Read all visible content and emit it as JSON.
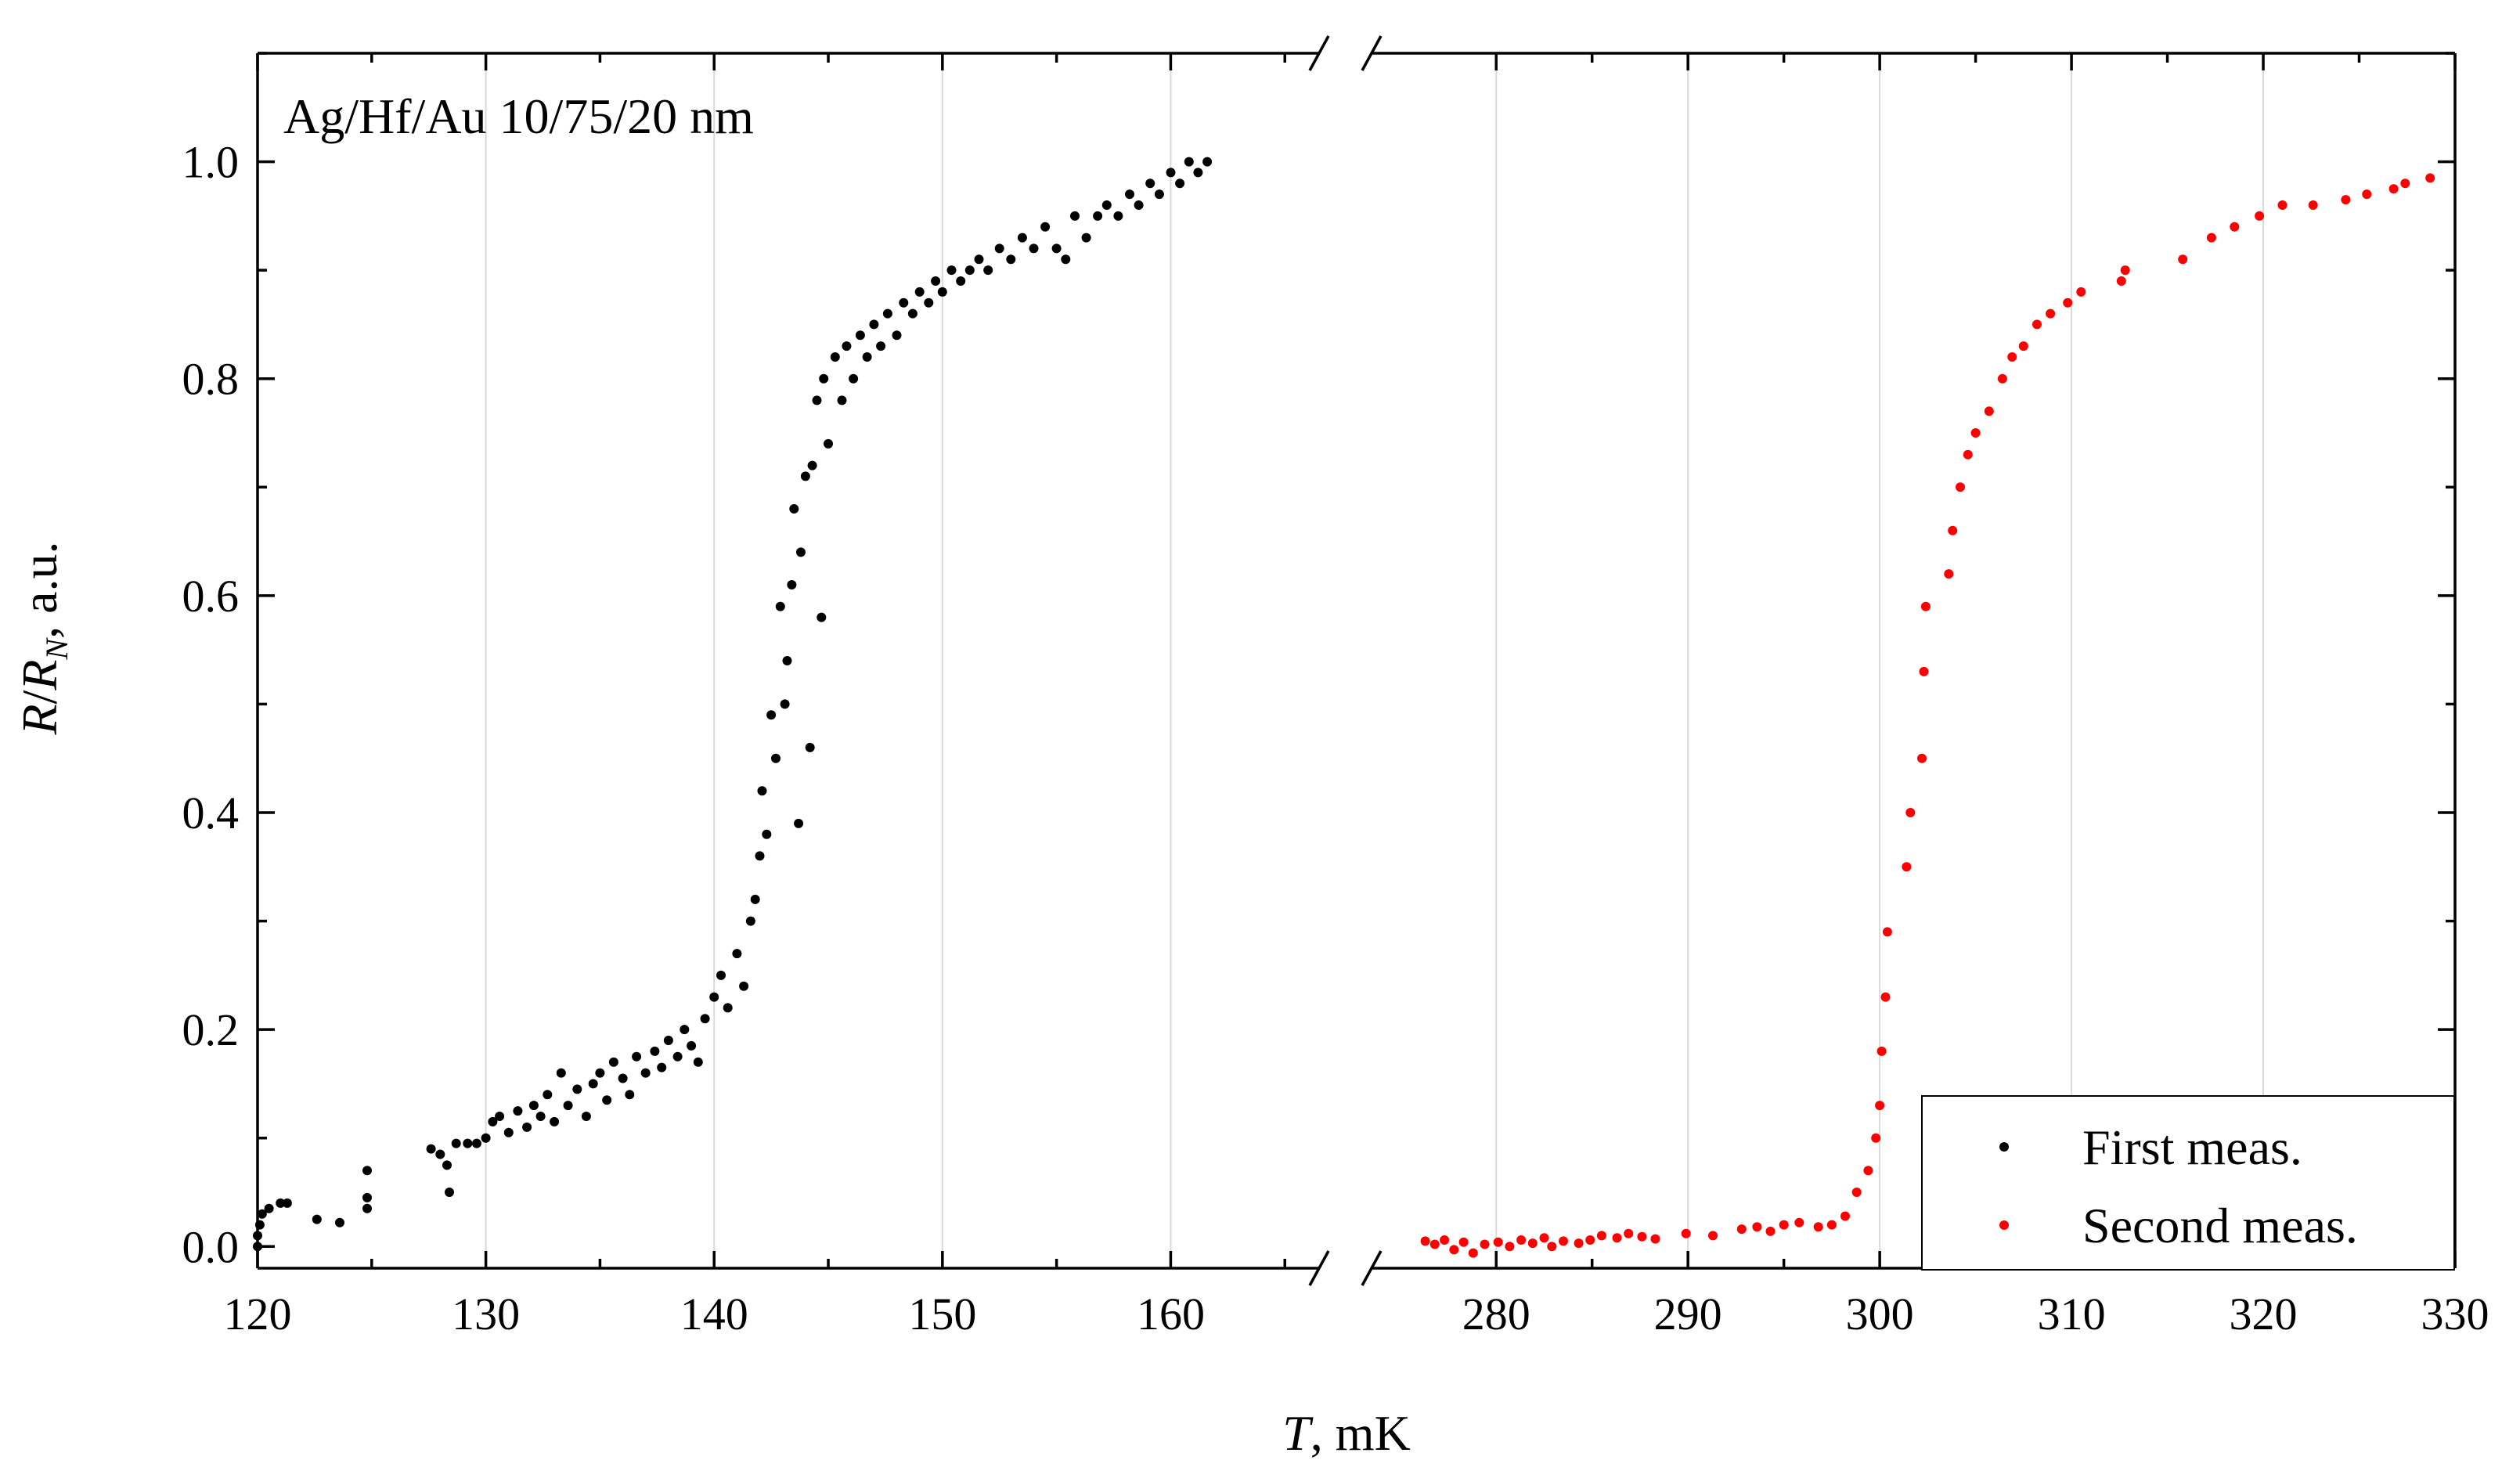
{
  "chart_data": {
    "type": "scatter",
    "title": "",
    "annotation": "Ag/Hf/Au 10/75/20 nm",
    "ylabel_parts": {
      "italic_1": "R",
      "slash": "/",
      "italic_2": "R",
      "subscript": "N",
      "suffix": ", a.u."
    },
    "xlabel_parts": {
      "italic": "T",
      "suffix": ", mK"
    },
    "ylim": [
      -0.02,
      1.1
    ],
    "yticks": [
      0.0,
      0.2,
      0.4,
      0.6,
      0.8,
      1.0
    ],
    "ytick_labels": [
      "0.0",
      "0.2",
      "0.4",
      "0.6",
      "0.8",
      "1.0"
    ],
    "x_break": true,
    "x_segments": [
      {
        "xlim": [
          120,
          166.5
        ],
        "ticks": [
          120,
          130,
          140,
          150,
          160
        ],
        "tick_labels": [
          "120",
          "130",
          "140",
          "150",
          "160"
        ]
      },
      {
        "xlim": [
          273.5,
          330
        ],
        "ticks": [
          280,
          290,
          300,
          310,
          320,
          330
        ],
        "tick_labels": [
          "280",
          "290",
          "300",
          "310",
          "320",
          "330"
        ]
      }
    ],
    "grid": "vertical",
    "legend_position": "bottom-right",
    "series": [
      {
        "name": "First meas.",
        "color": "#000000",
        "segment": 0,
        "points": [
          [
            120.0,
            0.0
          ],
          [
            120.0,
            0.01
          ],
          [
            120.1,
            0.02
          ],
          [
            120.2,
            0.03
          ],
          [
            120.5,
            0.035
          ],
          [
            121.0,
            0.04
          ],
          [
            121.3,
            0.04
          ],
          [
            122.6,
            0.025
          ],
          [
            123.6,
            0.022
          ],
          [
            124.8,
            0.035
          ],
          [
            124.8,
            0.045
          ],
          [
            124.8,
            0.07
          ],
          [
            127.6,
            0.09
          ],
          [
            128.0,
            0.085
          ],
          [
            128.3,
            0.075
          ],
          [
            128.4,
            0.05
          ],
          [
            128.7,
            0.095
          ],
          [
            129.2,
            0.095
          ],
          [
            129.6,
            0.095
          ],
          [
            130.0,
            0.1
          ],
          [
            130.3,
            0.115
          ],
          [
            130.6,
            0.12
          ],
          [
            131.0,
            0.105
          ],
          [
            131.4,
            0.125
          ],
          [
            131.8,
            0.11
          ],
          [
            132.1,
            0.13
          ],
          [
            132.4,
            0.12
          ],
          [
            132.7,
            0.14
          ],
          [
            133.0,
            0.115
          ],
          [
            133.3,
            0.16
          ],
          [
            133.6,
            0.13
          ],
          [
            134.0,
            0.145
          ],
          [
            134.4,
            0.12
          ],
          [
            134.7,
            0.15
          ],
          [
            135.0,
            0.16
          ],
          [
            135.3,
            0.135
          ],
          [
            135.6,
            0.17
          ],
          [
            136.0,
            0.155
          ],
          [
            136.3,
            0.14
          ],
          [
            136.6,
            0.175
          ],
          [
            137.0,
            0.16
          ],
          [
            137.4,
            0.18
          ],
          [
            137.7,
            0.165
          ],
          [
            138.0,
            0.19
          ],
          [
            138.4,
            0.175
          ],
          [
            138.7,
            0.2
          ],
          [
            139.0,
            0.185
          ],
          [
            139.3,
            0.17
          ],
          [
            139.6,
            0.21
          ],
          [
            140.0,
            0.23
          ],
          [
            140.3,
            0.25
          ],
          [
            140.6,
            0.22
          ],
          [
            141.0,
            0.27
          ],
          [
            141.3,
            0.24
          ],
          [
            141.6,
            0.3
          ],
          [
            141.8,
            0.32
          ],
          [
            142.0,
            0.36
          ],
          [
            142.1,
            0.42
          ],
          [
            142.3,
            0.38
          ],
          [
            142.5,
            0.49
          ],
          [
            142.7,
            0.45
          ],
          [
            142.9,
            0.59
          ],
          [
            143.1,
            0.5
          ],
          [
            143.2,
            0.54
          ],
          [
            143.4,
            0.61
          ],
          [
            143.5,
            0.68
          ],
          [
            143.7,
            0.39
          ],
          [
            143.8,
            0.64
          ],
          [
            144.0,
            0.71
          ],
          [
            144.2,
            0.46
          ],
          [
            144.3,
            0.72
          ],
          [
            144.5,
            0.78
          ],
          [
            144.7,
            0.58
          ],
          [
            144.8,
            0.8
          ],
          [
            145.0,
            0.74
          ],
          [
            145.3,
            0.82
          ],
          [
            145.6,
            0.78
          ],
          [
            145.8,
            0.83
          ],
          [
            146.1,
            0.8
          ],
          [
            146.4,
            0.84
          ],
          [
            146.7,
            0.82
          ],
          [
            147.0,
            0.85
          ],
          [
            147.3,
            0.83
          ],
          [
            147.6,
            0.86
          ],
          [
            148.0,
            0.84
          ],
          [
            148.3,
            0.87
          ],
          [
            148.7,
            0.86
          ],
          [
            149.0,
            0.88
          ],
          [
            149.4,
            0.87
          ],
          [
            149.7,
            0.89
          ],
          [
            150.0,
            0.88
          ],
          [
            150.4,
            0.9
          ],
          [
            150.8,
            0.89
          ],
          [
            151.2,
            0.9
          ],
          [
            151.6,
            0.91
          ],
          [
            152.0,
            0.9
          ],
          [
            152.5,
            0.92
          ],
          [
            153.0,
            0.91
          ],
          [
            153.5,
            0.93
          ],
          [
            154.0,
            0.92
          ],
          [
            154.5,
            0.94
          ],
          [
            155.0,
            0.92
          ],
          [
            155.4,
            0.91
          ],
          [
            155.8,
            0.95
          ],
          [
            156.3,
            0.93
          ],
          [
            156.8,
            0.95
          ],
          [
            157.2,
            0.96
          ],
          [
            157.7,
            0.95
          ],
          [
            158.2,
            0.97
          ],
          [
            158.6,
            0.96
          ],
          [
            159.1,
            0.98
          ],
          [
            159.5,
            0.97
          ],
          [
            160.0,
            0.99
          ],
          [
            160.4,
            0.98
          ],
          [
            160.8,
            1.0
          ],
          [
            161.2,
            0.99
          ],
          [
            161.6,
            1.0
          ]
        ]
      },
      {
        "name": "Second meas.",
        "color": "#ff0000",
        "segment": 1,
        "points": [
          [
            276.3,
            0.005
          ],
          [
            276.8,
            0.002
          ],
          [
            277.3,
            0.006
          ],
          [
            277.8,
            -0.003
          ],
          [
            278.3,
            0.004
          ],
          [
            278.8,
            -0.006
          ],
          [
            279.4,
            0.002
          ],
          [
            280.1,
            0.004
          ],
          [
            280.7,
            0.0
          ],
          [
            281.3,
            0.006
          ],
          [
            281.9,
            0.003
          ],
          [
            282.5,
            0.008
          ],
          [
            282.9,
            0.0
          ],
          [
            283.5,
            0.005
          ],
          [
            284.3,
            0.003
          ],
          [
            284.9,
            0.006
          ],
          [
            285.5,
            0.01
          ],
          [
            286.3,
            0.008
          ],
          [
            286.9,
            0.012
          ],
          [
            287.6,
            0.009
          ],
          [
            288.3,
            0.007
          ],
          [
            289.9,
            0.012
          ],
          [
            291.3,
            0.01
          ],
          [
            292.8,
            0.016
          ],
          [
            293.6,
            0.018
          ],
          [
            294.3,
            0.014
          ],
          [
            295.0,
            0.02
          ],
          [
            295.8,
            0.022
          ],
          [
            296.8,
            0.018
          ],
          [
            297.5,
            0.02
          ],
          [
            298.2,
            0.028
          ],
          [
            298.8,
            0.05
          ],
          [
            299.4,
            0.07
          ],
          [
            299.8,
            0.1
          ],
          [
            300.0,
            0.13
          ],
          [
            300.1,
            0.18
          ],
          [
            300.3,
            0.23
          ],
          [
            300.4,
            0.29
          ],
          [
            301.4,
            0.35
          ],
          [
            301.6,
            0.4
          ],
          [
            302.2,
            0.45
          ],
          [
            302.3,
            0.53
          ],
          [
            302.4,
            0.59
          ],
          [
            303.6,
            0.62
          ],
          [
            303.8,
            0.66
          ],
          [
            304.2,
            0.7
          ],
          [
            304.6,
            0.73
          ],
          [
            305.0,
            0.75
          ],
          [
            305.7,
            0.77
          ],
          [
            306.4,
            0.8
          ],
          [
            306.9,
            0.82
          ],
          [
            307.5,
            0.83
          ],
          [
            308.2,
            0.85
          ],
          [
            308.9,
            0.86
          ],
          [
            309.8,
            0.87
          ],
          [
            310.5,
            0.88
          ],
          [
            312.6,
            0.89
          ],
          [
            312.8,
            0.9
          ],
          [
            315.8,
            0.91
          ],
          [
            317.3,
            0.93
          ],
          [
            318.5,
            0.94
          ],
          [
            319.8,
            0.95
          ],
          [
            321.0,
            0.96
          ],
          [
            322.6,
            0.96
          ],
          [
            324.3,
            0.965
          ],
          [
            325.4,
            0.97
          ],
          [
            326.8,
            0.975
          ],
          [
            327.4,
            0.98
          ],
          [
            328.7,
            0.985
          ]
        ]
      }
    ]
  }
}
